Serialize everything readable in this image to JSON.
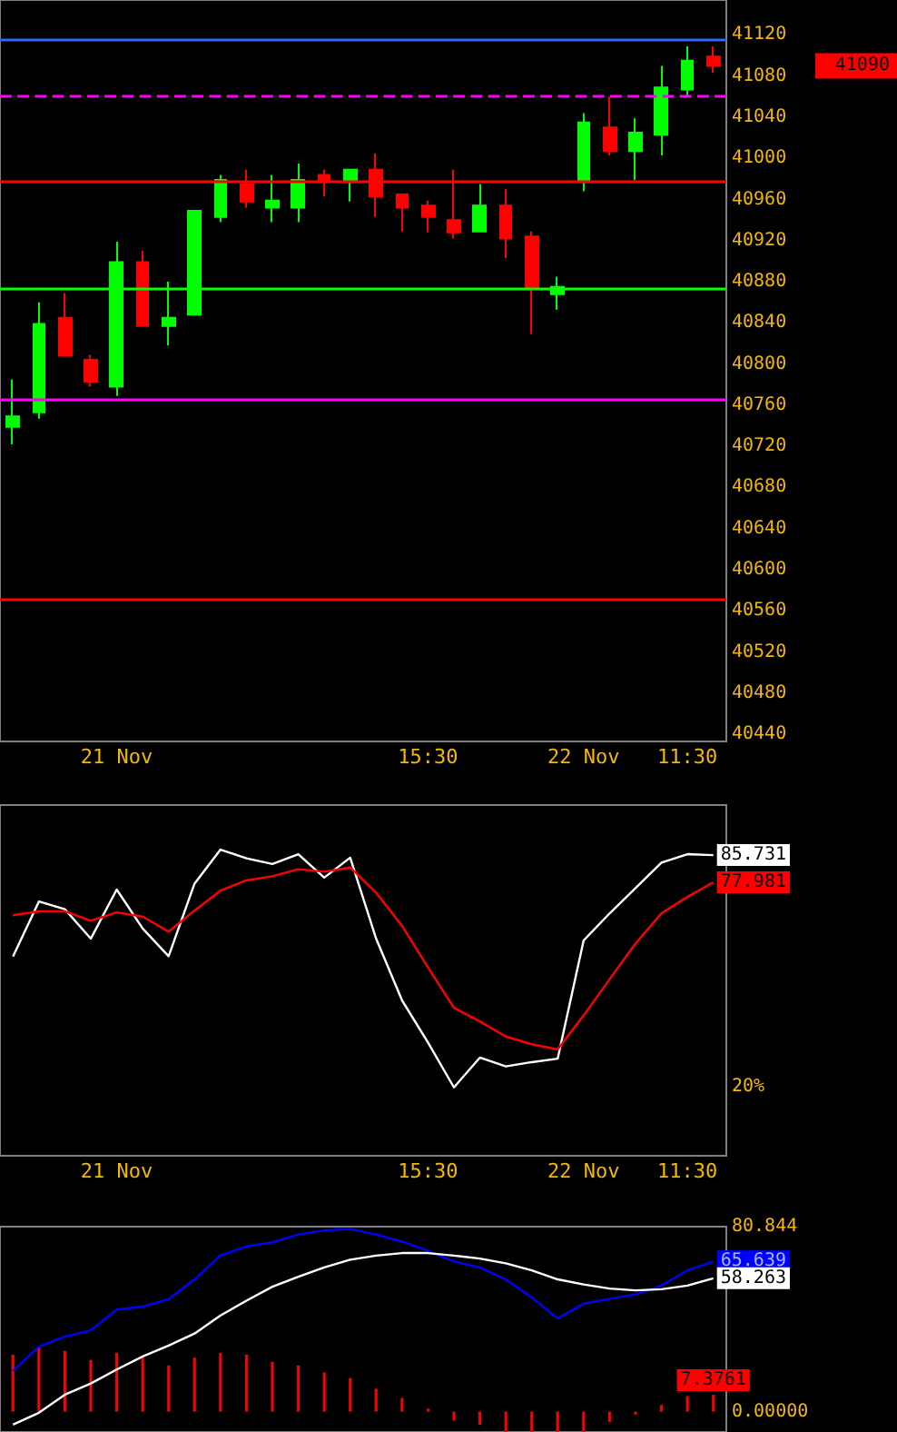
{
  "chart_data": [
    {
      "type": "candlestick",
      "categories": [
        null,
        null,
        null,
        null,
        "21 Nov",
        null,
        null,
        null,
        null,
        null,
        null,
        null,
        null,
        null,
        null,
        null,
        "15:30",
        null,
        null,
        null,
        null,
        null,
        "22 Nov",
        null,
        null,
        null,
        "11:30",
        null
      ],
      "ohlc": [
        [
          40739,
          40785,
          40722,
          40749
        ],
        [
          40753,
          40860,
          40747,
          40839
        ],
        [
          40845,
          40869,
          40808,
          40808
        ],
        [
          40804,
          40809,
          40778,
          40783
        ],
        [
          40778,
          40919,
          40769,
          40899
        ],
        [
          40899,
          40910,
          40837,
          40837
        ],
        [
          40837,
          40880,
          40818,
          40845
        ],
        [
          40848,
          40949,
          40848,
          40949
        ],
        [
          40943,
          40984,
          40938,
          40979
        ],
        [
          40975,
          40989,
          40952,
          40958
        ],
        [
          40952,
          40984,
          40938,
          40959
        ],
        [
          40952,
          40995,
          40938,
          40979
        ],
        [
          40984,
          40989,
          40963,
          40977
        ],
        [
          40977,
          40989,
          40958,
          40989
        ],
        [
          40989,
          41005,
          40943,
          40963
        ],
        [
          40965,
          40965,
          40929,
          40952
        ],
        [
          40954,
          40959,
          40928,
          40943
        ],
        [
          40940,
          40989,
          40922,
          40928
        ],
        [
          40929,
          40975,
          40928,
          40954
        ],
        [
          40954,
          40970,
          40903,
          40922
        ],
        [
          40924,
          40929,
          40829,
          40873
        ],
        [
          40868,
          40885,
          40853,
          40875
        ],
        [
          40977,
          41044,
          40968,
          41035
        ],
        [
          41030,
          41060,
          41003,
          41007
        ],
        [
          41007,
          41039,
          40979,
          41025
        ],
        [
          41023,
          41090,
          41003,
          41069
        ],
        [
          41067,
          41109,
          41060,
          41095
        ],
        [
          41099,
          41109,
          41083,
          41090
        ]
      ],
      "colors": [
        "#00ff00",
        "#00ff00",
        "#ff0000",
        "#ff0000",
        "#00ff00",
        "#ff0000",
        "#00ff00",
        "#00ff00",
        "#00ff00",
        "#ff0000",
        "#00ff00",
        "#00ff00",
        "#ff0000",
        "#00ff00",
        "#ff0000",
        "#ff0000",
        "#ff0000",
        "#ff0000",
        "#00ff00",
        "#ff0000",
        "#ff0000",
        "#00ff00",
        "#00ff00",
        "#ff0000",
        "#00ff00",
        "#00ff00",
        "#00ff00",
        "#ff0000"
      ],
      "ylim": [
        40433,
        41154
      ],
      "yticks": [
        40440,
        40480,
        40520,
        40560,
        40600,
        40640,
        40680,
        40720,
        40760,
        40800,
        40840,
        40880,
        40920,
        40960,
        41000,
        41040,
        41080,
        41120
      ],
      "ref_lines": [
        {
          "axis": "y",
          "value": 41115,
          "color": "#3366ff",
          "line_style": "solid"
        },
        {
          "axis": "y",
          "value": 41060,
          "color": "#ff00ff",
          "line_style": "dashed"
        },
        {
          "axis": "y",
          "value": 40978,
          "color": "#ff0000",
          "line_style": "solid"
        },
        {
          "axis": "y",
          "value": 40874,
          "color": "#00ff00",
          "line_style": "solid"
        },
        {
          "axis": "y",
          "value": 40765,
          "color": "#ff00ff",
          "line_style": "solid"
        },
        {
          "axis": "y",
          "value": 40571,
          "color": "#ff0000",
          "line_style": "solid"
        }
      ],
      "value_labels": [
        null,
        null,
        null,
        null,
        null,
        null,
        null,
        null,
        null,
        null,
        null,
        null,
        null,
        null,
        null,
        null,
        null,
        null,
        null,
        null,
        null,
        null,
        null,
        null,
        null,
        null,
        null,
        "41090"
      ]
    },
    {
      "type": "line",
      "categories": [
        null,
        null,
        null,
        null,
        "21 Nov",
        null,
        null,
        null,
        null,
        null,
        null,
        null,
        null,
        null,
        null,
        null,
        "15:30",
        null,
        null,
        null,
        null,
        null,
        "22 Nov",
        null,
        null,
        null,
        "11:30",
        null
      ],
      "series": [
        {
          "color": "#ffffff",
          "values": [
            56.8,
            72.5,
            70.3,
            61.9,
            75.9,
            64.8,
            56.9,
            77.6,
            87.3,
            84.8,
            83.2,
            86,
            79.3,
            85,
            61.9,
            44.3,
            32.3,
            19.5,
            28,
            25.5,
            26.7,
            27.7,
            61.4,
            69.1,
            76.3,
            83.6,
            86,
            85.731
          ],
          "value_labels": [
            null,
            null,
            null,
            null,
            null,
            null,
            null,
            null,
            null,
            null,
            null,
            null,
            null,
            null,
            null,
            null,
            null,
            null,
            null,
            null,
            null,
            null,
            null,
            null,
            null,
            null,
            null,
            "85.731"
          ]
        },
        {
          "color": "#ff0000",
          "values": [
            68.6,
            69.7,
            69.7,
            67,
            69.4,
            68.2,
            63.9,
            69.9,
            75.6,
            78.5,
            79.7,
            81.7,
            81,
            82.2,
            75,
            65.6,
            53.7,
            42.2,
            38.3,
            34,
            31.8,
            30.3,
            40,
            50.3,
            60.5,
            69.1,
            73.8,
            77.981
          ],
          "value_labels": [
            null,
            null,
            null,
            null,
            null,
            null,
            null,
            null,
            null,
            null,
            null,
            null,
            null,
            null,
            null,
            null,
            null,
            null,
            null,
            null,
            null,
            null,
            null,
            null,
            null,
            null,
            null,
            "77.981"
          ]
        }
      ],
      "ylim": [
        0,
        100
      ],
      "annotations": [
        "20%"
      ]
    },
    {
      "type": "line",
      "categories": [
        null,
        null,
        null,
        null,
        null,
        null,
        null,
        null,
        null,
        null,
        null,
        null,
        null,
        null,
        null,
        null,
        null,
        null,
        null,
        null,
        null,
        null,
        null,
        null,
        null,
        null,
        null,
        null
      ],
      "tick_labels": "y",
      "series": [
        {
          "type": "bar",
          "color": "#ff0000",
          "values": [
            24.9,
            28.3,
            26.5,
            22.6,
            25.7,
            23.6,
            20.2,
            23.6,
            25.7,
            24.9,
            21.8,
            20.2,
            17.1,
            14.7,
            10,
            6,
            1.3,
            -3.9,
            -5.8,
            -8.9,
            -8.9,
            -8.9,
            -8.9,
            -4.5,
            -1.3,
            2.9,
            6.8,
            7.3761
          ],
          "value_labels": [
            null,
            null,
            null,
            null,
            null,
            null,
            null,
            null,
            null,
            null,
            null,
            null,
            null,
            null,
            null,
            null,
            null,
            null,
            null,
            null,
            null,
            null,
            null,
            null,
            null,
            null,
            null,
            "7.3761"
          ]
        },
        {
          "color": "#0000ff",
          "values": [
            17.9,
            28.4,
            32.8,
            35.5,
            44.6,
            45.9,
            49.1,
            57.8,
            68.3,
            72.2,
            74,
            77.4,
            79.2,
            79.8,
            77.4,
            74.3,
            70.3,
            65.6,
            63,
            57.8,
            49.9,
            40.7,
            47.2,
            49.3,
            51.2,
            55.1,
            61.7,
            65.639
          ],
          "value_labels": [
            null,
            null,
            null,
            null,
            null,
            null,
            null,
            null,
            null,
            null,
            null,
            null,
            null,
            null,
            null,
            null,
            null,
            null,
            null,
            null,
            null,
            null,
            null,
            null,
            null,
            null,
            null,
            "65.639"
          ]
        },
        {
          "color": "#ffffff",
          "values": [
            -5.7,
            -0.5,
            7.4,
            12.3,
            18.4,
            24.1,
            28.9,
            34.1,
            42,
            48.5,
            54.6,
            59,
            63,
            66.4,
            68.2,
            69.3,
            69.3,
            68.2,
            66.9,
            64.8,
            61.7,
            57.8,
            55.6,
            53.8,
            53,
            53.5,
            55.1,
            58.263
          ],
          "value_labels": [
            null,
            null,
            null,
            null,
            null,
            null,
            null,
            null,
            null,
            null,
            null,
            null,
            null,
            null,
            null,
            null,
            null,
            null,
            null,
            null,
            null,
            null,
            null,
            null,
            null,
            null,
            null,
            "58.263"
          ]
        }
      ],
      "ylim": [
        -8.9,
        80.844
      ],
      "yticks": [
        80.844,
        {
          "value": 0,
          "label": "0.00000"
        }
      ]
    }
  ]
}
